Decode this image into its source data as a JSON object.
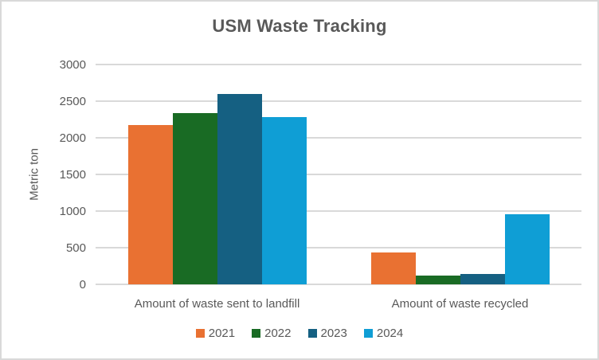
{
  "window": {
    "background": "#FFFFFF",
    "border_color": "#D9D9D9"
  },
  "chart_data": {
    "type": "bar",
    "title": "USM Waste Tracking",
    "ylabel": "Metric ton",
    "xlabel": "",
    "categories": [
      "Amount of waste sent to landfill",
      "Amount of waste recycled"
    ],
    "series": [
      {
        "name": "2021",
        "color": "#E97132",
        "values": [
          2170,
          440
        ]
      },
      {
        "name": "2022",
        "color": "#196B24",
        "values": [
          2340,
          120
        ]
      },
      {
        "name": "2023",
        "color": "#156082",
        "values": [
          2600,
          140
        ]
      },
      {
        "name": "2024",
        "color": "#0F9ED5",
        "values": [
          2280,
          960
        ]
      }
    ],
    "ylim": [
      0,
      3000
    ],
    "yticks": [
      0,
      500,
      1000,
      1500,
      2000,
      2500,
      3000
    ],
    "grid": true,
    "legend_position": "bottom",
    "text_color": "#595959",
    "gridline_color": "#D9D9D9"
  }
}
